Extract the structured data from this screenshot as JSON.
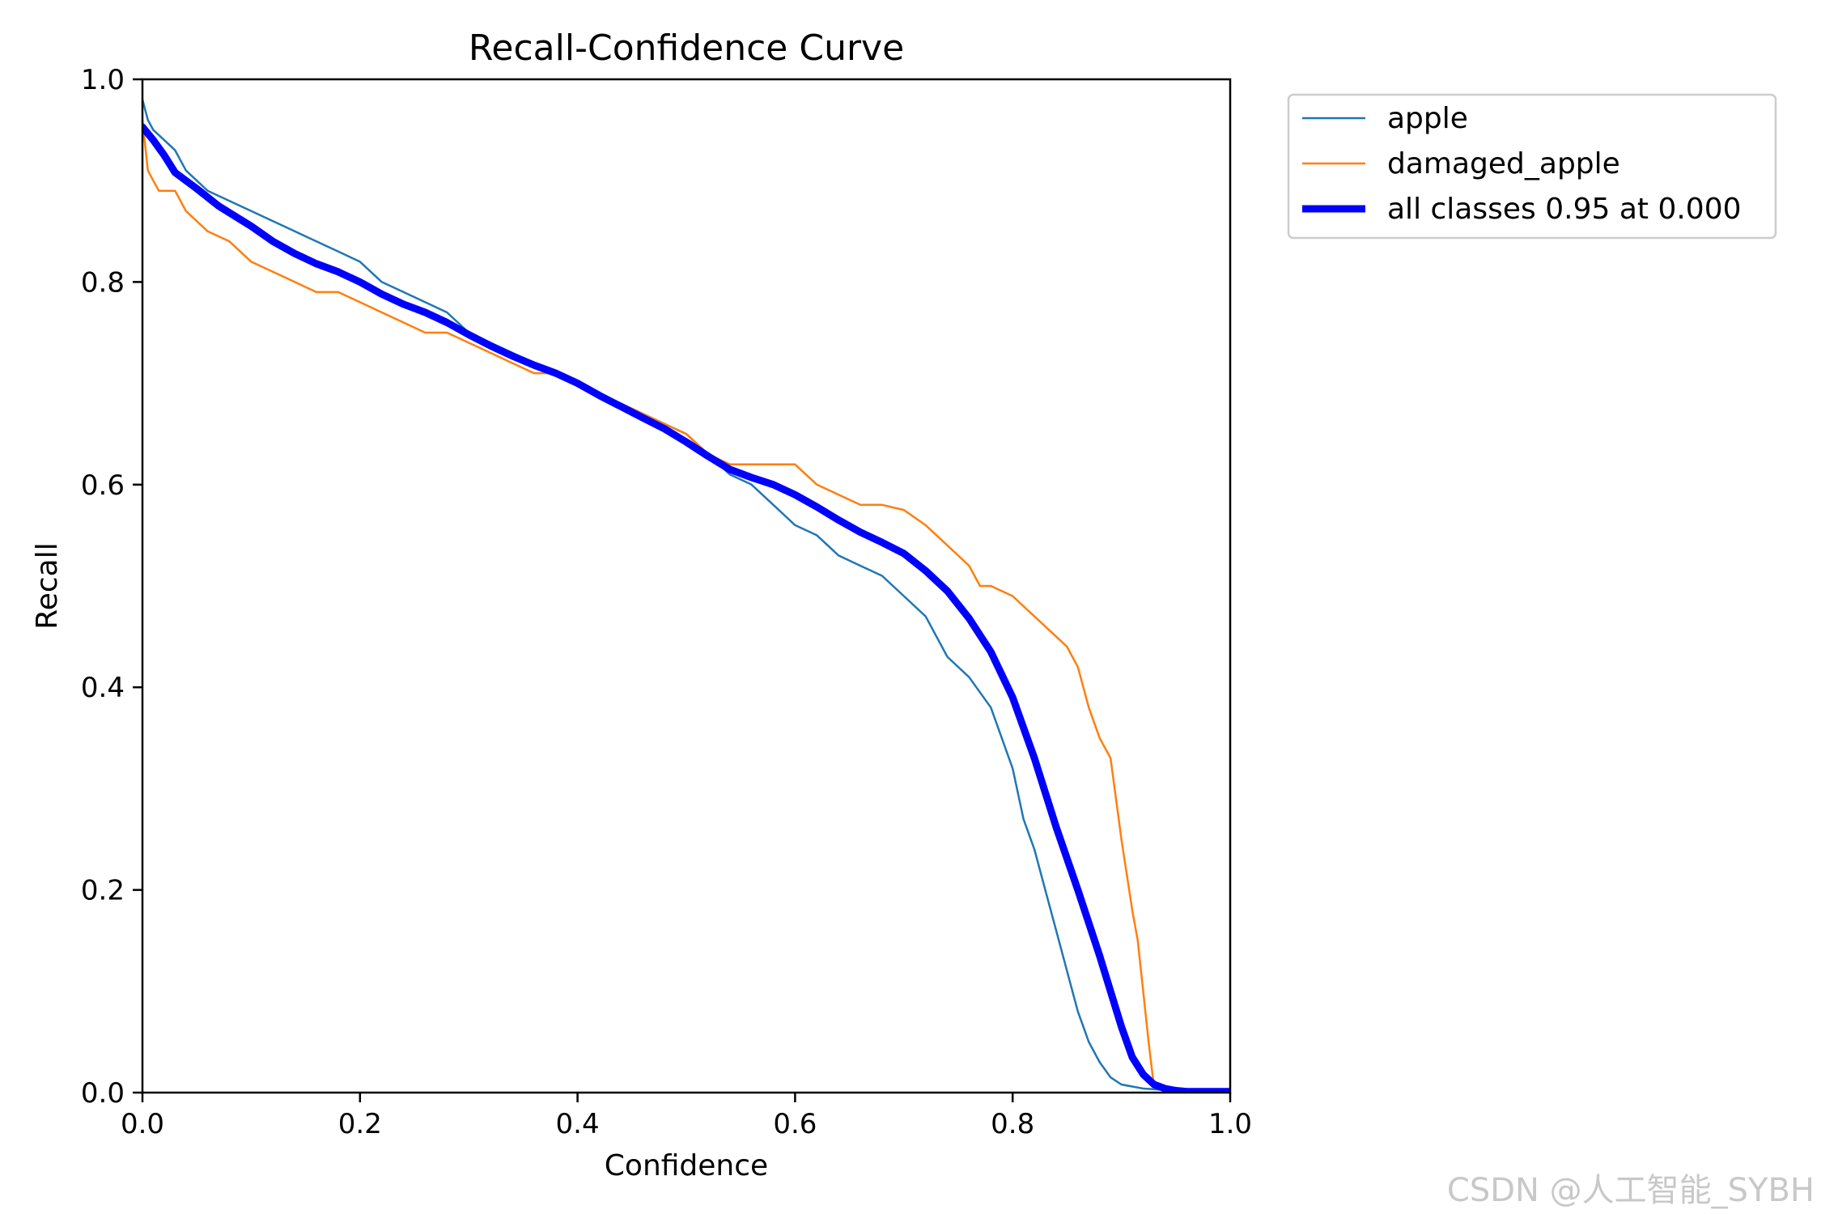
{
  "chart_data": {
    "type": "line",
    "title": "Recall-Confidence Curve",
    "xlabel": "Confidence",
    "ylabel": "Recall",
    "xlim": [
      0.0,
      1.0
    ],
    "ylim": [
      0.0,
      1.0
    ],
    "xticks": [
      "0.0",
      "0.2",
      "0.4",
      "0.6",
      "0.8",
      "1.0"
    ],
    "yticks": [
      "0.0",
      "0.2",
      "0.4",
      "0.6",
      "0.8",
      "1.0"
    ],
    "grid": false,
    "legend_position": "outside-top-right",
    "series": [
      {
        "name": "apple",
        "color": "#1f77b4",
        "x": [
          0.0,
          0.005,
          0.01,
          0.02,
          0.03,
          0.04,
          0.05,
          0.06,
          0.08,
          0.1,
          0.12,
          0.14,
          0.16,
          0.18,
          0.2,
          0.22,
          0.24,
          0.26,
          0.28,
          0.3,
          0.32,
          0.34,
          0.36,
          0.38,
          0.4,
          0.42,
          0.44,
          0.46,
          0.48,
          0.5,
          0.52,
          0.54,
          0.56,
          0.58,
          0.6,
          0.62,
          0.64,
          0.66,
          0.68,
          0.7,
          0.72,
          0.74,
          0.76,
          0.78,
          0.8,
          0.81,
          0.82,
          0.83,
          0.84,
          0.85,
          0.86,
          0.87,
          0.88,
          0.89,
          0.9,
          0.92,
          0.95,
          0.97,
          1.0
        ],
        "y": [
          0.98,
          0.96,
          0.95,
          0.94,
          0.93,
          0.91,
          0.9,
          0.89,
          0.88,
          0.87,
          0.86,
          0.85,
          0.84,
          0.83,
          0.82,
          0.8,
          0.79,
          0.78,
          0.77,
          0.75,
          0.74,
          0.73,
          0.72,
          0.71,
          0.7,
          0.69,
          0.68,
          0.67,
          0.66,
          0.65,
          0.63,
          0.61,
          0.6,
          0.58,
          0.56,
          0.55,
          0.53,
          0.52,
          0.51,
          0.49,
          0.47,
          0.43,
          0.41,
          0.38,
          0.32,
          0.27,
          0.24,
          0.2,
          0.16,
          0.12,
          0.08,
          0.05,
          0.03,
          0.015,
          0.008,
          0.004,
          0.002,
          0.001,
          0.001
        ]
      },
      {
        "name": "damaged_apple",
        "color": "#ff7f0e",
        "x": [
          0.0,
          0.005,
          0.01,
          0.015,
          0.03,
          0.04,
          0.05,
          0.06,
          0.08,
          0.1,
          0.12,
          0.14,
          0.16,
          0.18,
          0.2,
          0.22,
          0.24,
          0.26,
          0.28,
          0.3,
          0.32,
          0.34,
          0.36,
          0.38,
          0.4,
          0.42,
          0.44,
          0.46,
          0.48,
          0.5,
          0.52,
          0.54,
          0.56,
          0.58,
          0.6,
          0.61,
          0.62,
          0.64,
          0.66,
          0.68,
          0.7,
          0.72,
          0.74,
          0.76,
          0.77,
          0.78,
          0.8,
          0.82,
          0.84,
          0.85,
          0.86,
          0.87,
          0.88,
          0.89,
          0.9,
          0.91,
          0.915,
          0.92,
          0.925,
          0.93,
          0.95,
          1.0
        ],
        "y": [
          0.96,
          0.91,
          0.9,
          0.89,
          0.89,
          0.87,
          0.86,
          0.85,
          0.84,
          0.82,
          0.81,
          0.8,
          0.79,
          0.79,
          0.78,
          0.77,
          0.76,
          0.75,
          0.75,
          0.74,
          0.73,
          0.72,
          0.71,
          0.71,
          0.7,
          0.69,
          0.68,
          0.67,
          0.66,
          0.65,
          0.63,
          0.62,
          0.62,
          0.62,
          0.62,
          0.61,
          0.6,
          0.59,
          0.58,
          0.58,
          0.575,
          0.56,
          0.54,
          0.52,
          0.5,
          0.5,
          0.49,
          0.47,
          0.45,
          0.44,
          0.42,
          0.38,
          0.35,
          0.33,
          0.25,
          0.18,
          0.15,
          0.1,
          0.05,
          0.005,
          0.0,
          0.0
        ]
      },
      {
        "name": "all classes 0.95 at 0.000",
        "color": "#0000ff",
        "x": [
          0.0,
          0.01,
          0.02,
          0.03,
          0.05,
          0.07,
          0.1,
          0.12,
          0.14,
          0.16,
          0.18,
          0.2,
          0.22,
          0.24,
          0.26,
          0.28,
          0.3,
          0.32,
          0.34,
          0.36,
          0.38,
          0.4,
          0.42,
          0.44,
          0.46,
          0.48,
          0.5,
          0.52,
          0.54,
          0.56,
          0.58,
          0.6,
          0.62,
          0.64,
          0.66,
          0.68,
          0.7,
          0.72,
          0.74,
          0.76,
          0.78,
          0.8,
          0.82,
          0.84,
          0.86,
          0.88,
          0.9,
          0.91,
          0.92,
          0.93,
          0.94,
          0.95,
          0.96,
          0.97,
          1.0
        ],
        "y": [
          0.953,
          0.94,
          0.925,
          0.908,
          0.892,
          0.875,
          0.855,
          0.84,
          0.828,
          0.818,
          0.81,
          0.8,
          0.788,
          0.778,
          0.77,
          0.76,
          0.748,
          0.737,
          0.727,
          0.718,
          0.71,
          0.7,
          0.688,
          0.677,
          0.666,
          0.655,
          0.642,
          0.628,
          0.615,
          0.607,
          0.6,
          0.59,
          0.578,
          0.565,
          0.553,
          0.543,
          0.532,
          0.515,
          0.495,
          0.468,
          0.435,
          0.39,
          0.33,
          0.262,
          0.2,
          0.135,
          0.065,
          0.035,
          0.018,
          0.008,
          0.004,
          0.002,
          0.001,
          0.001,
          0.001
        ]
      }
    ]
  },
  "watermark": "CSDN @人工智能_SYBH"
}
